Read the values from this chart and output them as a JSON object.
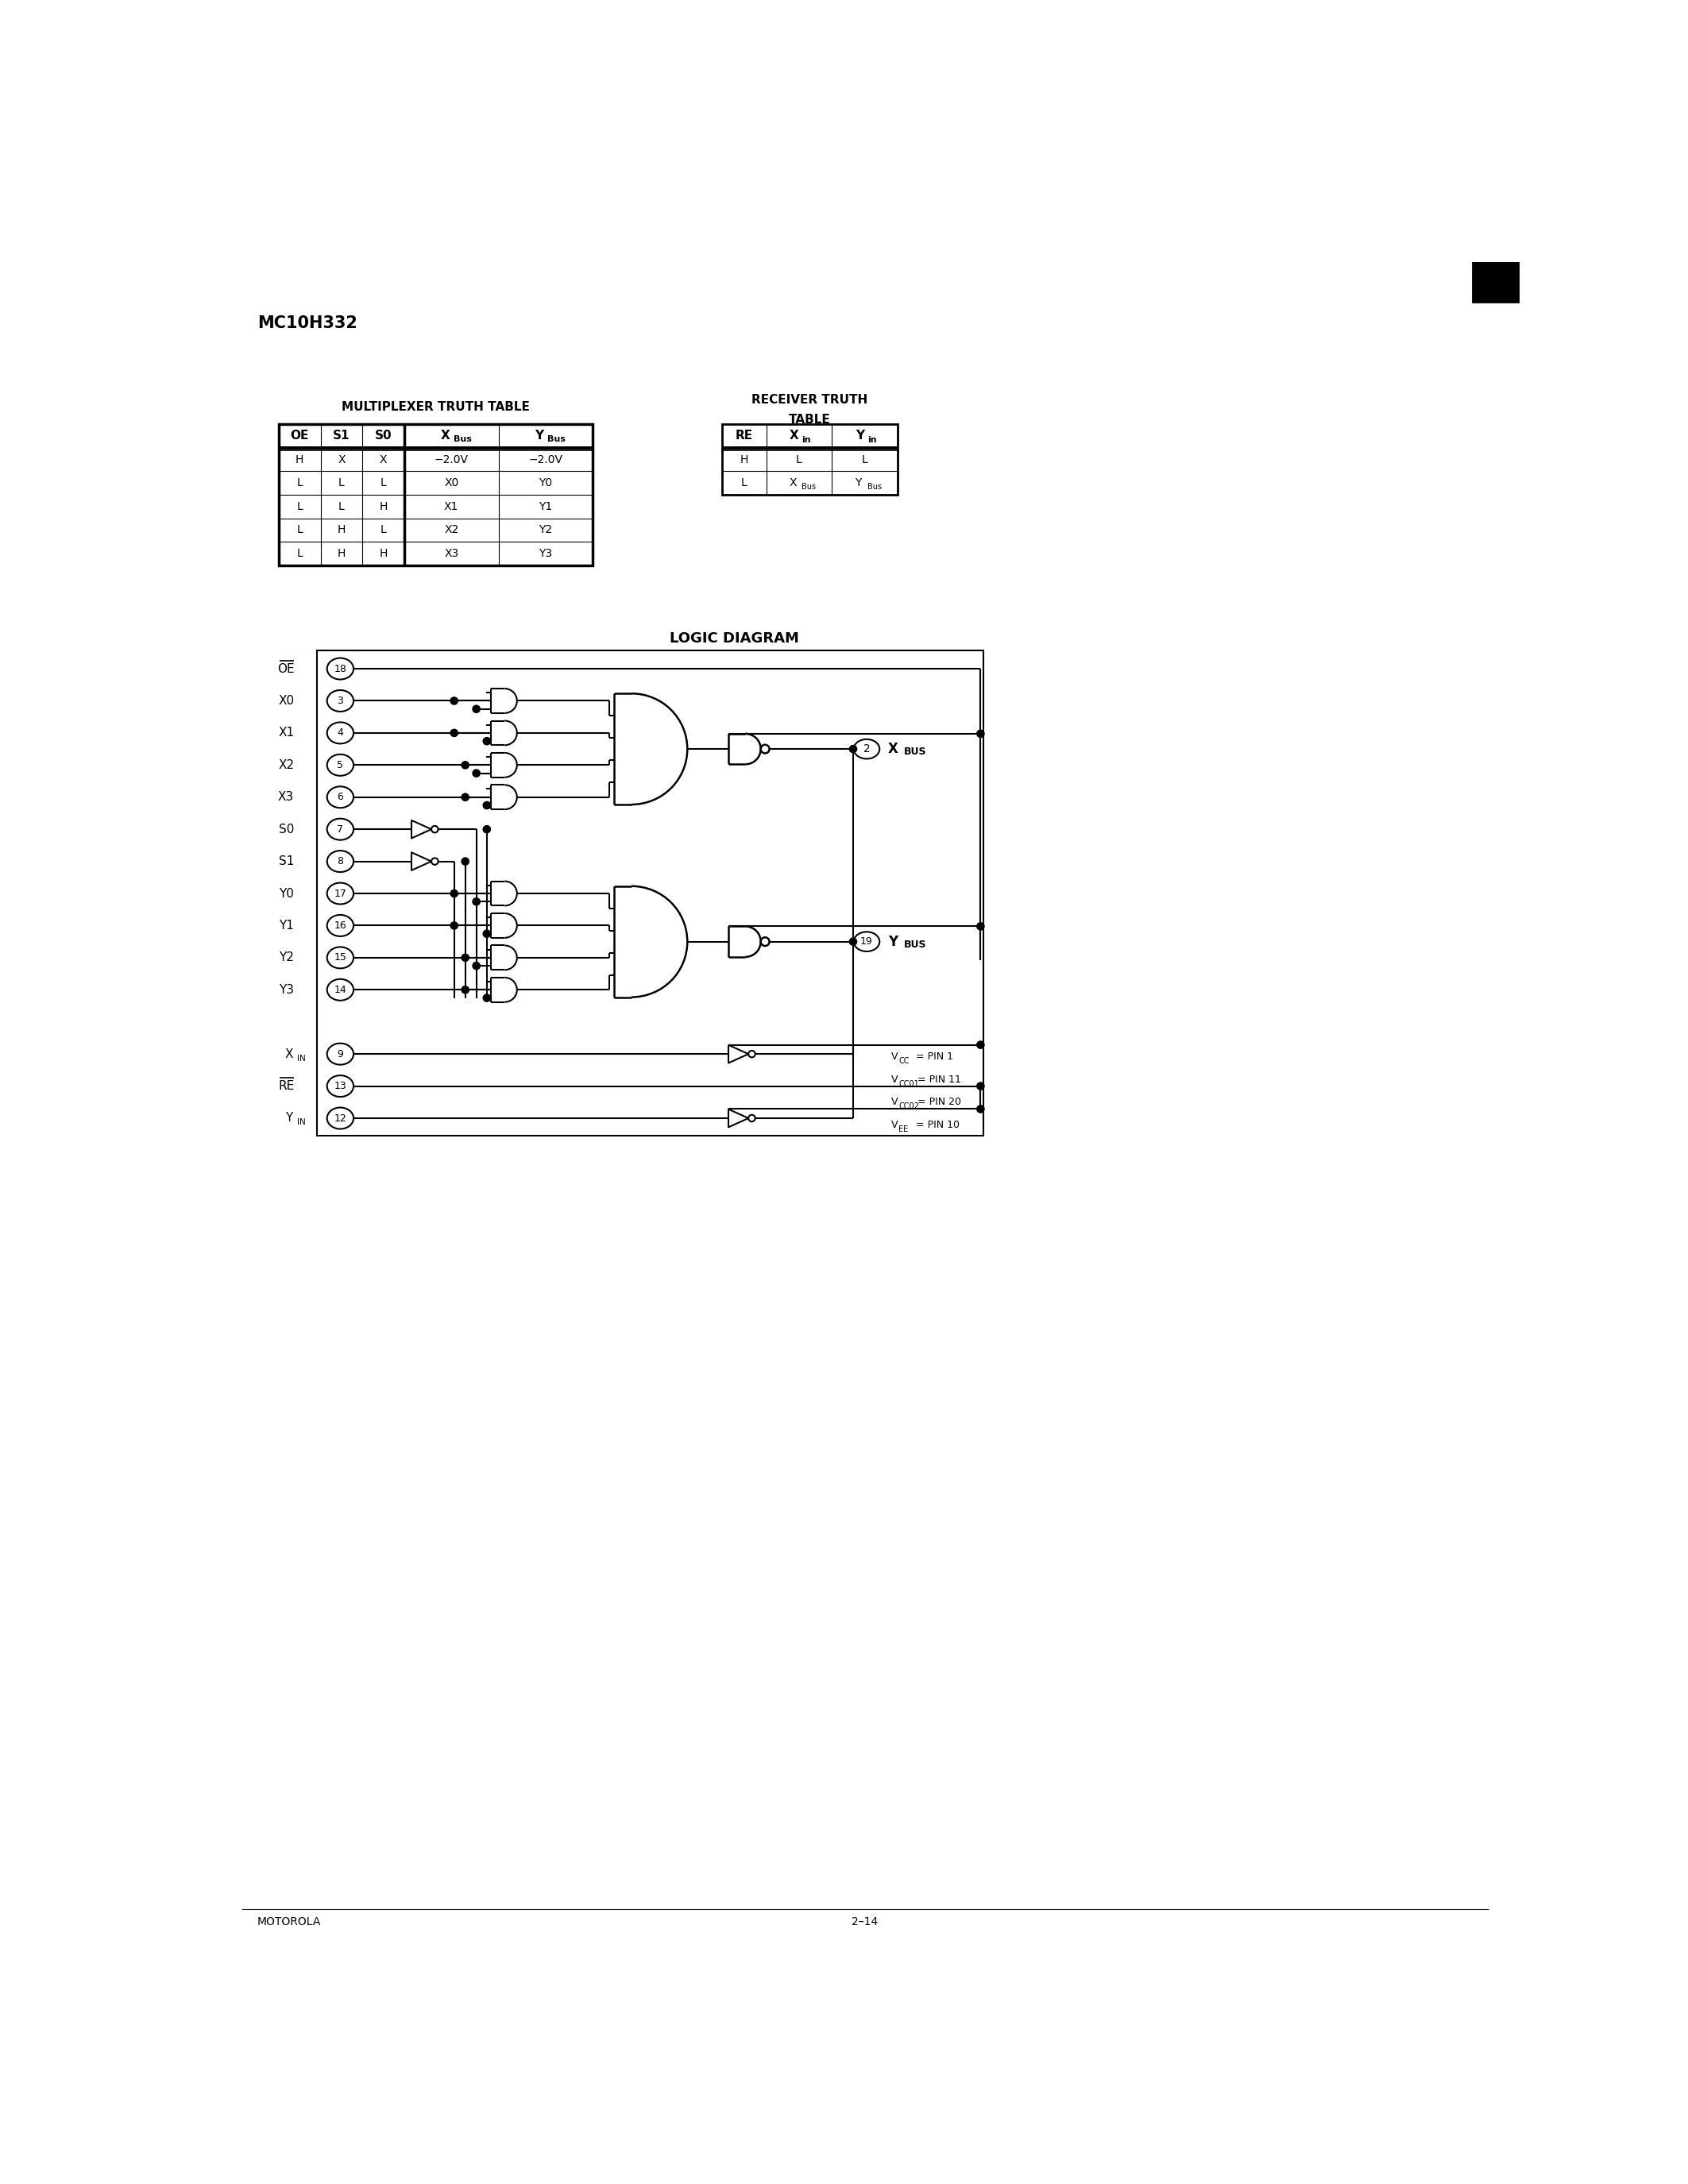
{
  "title": "MC10H332",
  "page_label": "MOTOROLA",
  "page_number": "2–14",
  "mux_table_title": "MULTIPLEXER TRUTH TABLE",
  "mux_rows": [
    [
      "H",
      "X",
      "X",
      "−2.0V",
      "−2.0V"
    ],
    [
      "L",
      "L",
      "L",
      "X0",
      "Y0"
    ],
    [
      "L",
      "L",
      "H",
      "X1",
      "Y1"
    ],
    [
      "L",
      "H",
      "L",
      "X2",
      "Y2"
    ],
    [
      "L",
      "H",
      "H",
      "X3",
      "Y3"
    ]
  ],
  "recv_rows": [
    [
      "H",
      "L",
      "L"
    ],
    [
      "L",
      "XBUS",
      "YBUS"
    ]
  ],
  "pins_left": [
    {
      "label": "OE",
      "overline": true,
      "pin": "18"
    },
    {
      "label": "X0",
      "overline": false,
      "pin": "3"
    },
    {
      "label": "X1",
      "overline": false,
      "pin": "4"
    },
    {
      "label": "X2",
      "overline": false,
      "pin": "5"
    },
    {
      "label": "X3",
      "overline": false,
      "pin": "6"
    },
    {
      "label": "S0",
      "overline": false,
      "pin": "7"
    },
    {
      "label": "S1",
      "overline": false,
      "pin": "8"
    },
    {
      "label": "Y0",
      "overline": false,
      "pin": "17"
    },
    {
      "label": "Y1",
      "overline": false,
      "pin": "16"
    },
    {
      "label": "Y2",
      "overline": false,
      "pin": "15"
    },
    {
      "label": "Y3",
      "overline": false,
      "pin": "14"
    },
    {
      "label": "XIN",
      "overline": false,
      "pin": "9"
    },
    {
      "label": "RE",
      "overline": true,
      "pin": "13"
    },
    {
      "label": "YIN",
      "overline": false,
      "pin": "12"
    }
  ],
  "vcc_lines": [
    [
      "V",
      "CC",
      "   =  PIN 1"
    ],
    [
      "V",
      "CC01",
      " =  PIN 11"
    ],
    [
      "V",
      "CC02",
      " =  PIN 20"
    ],
    [
      "V",
      "EE",
      "   =  PIN 10"
    ]
  ],
  "bg_color": "#ffffff"
}
